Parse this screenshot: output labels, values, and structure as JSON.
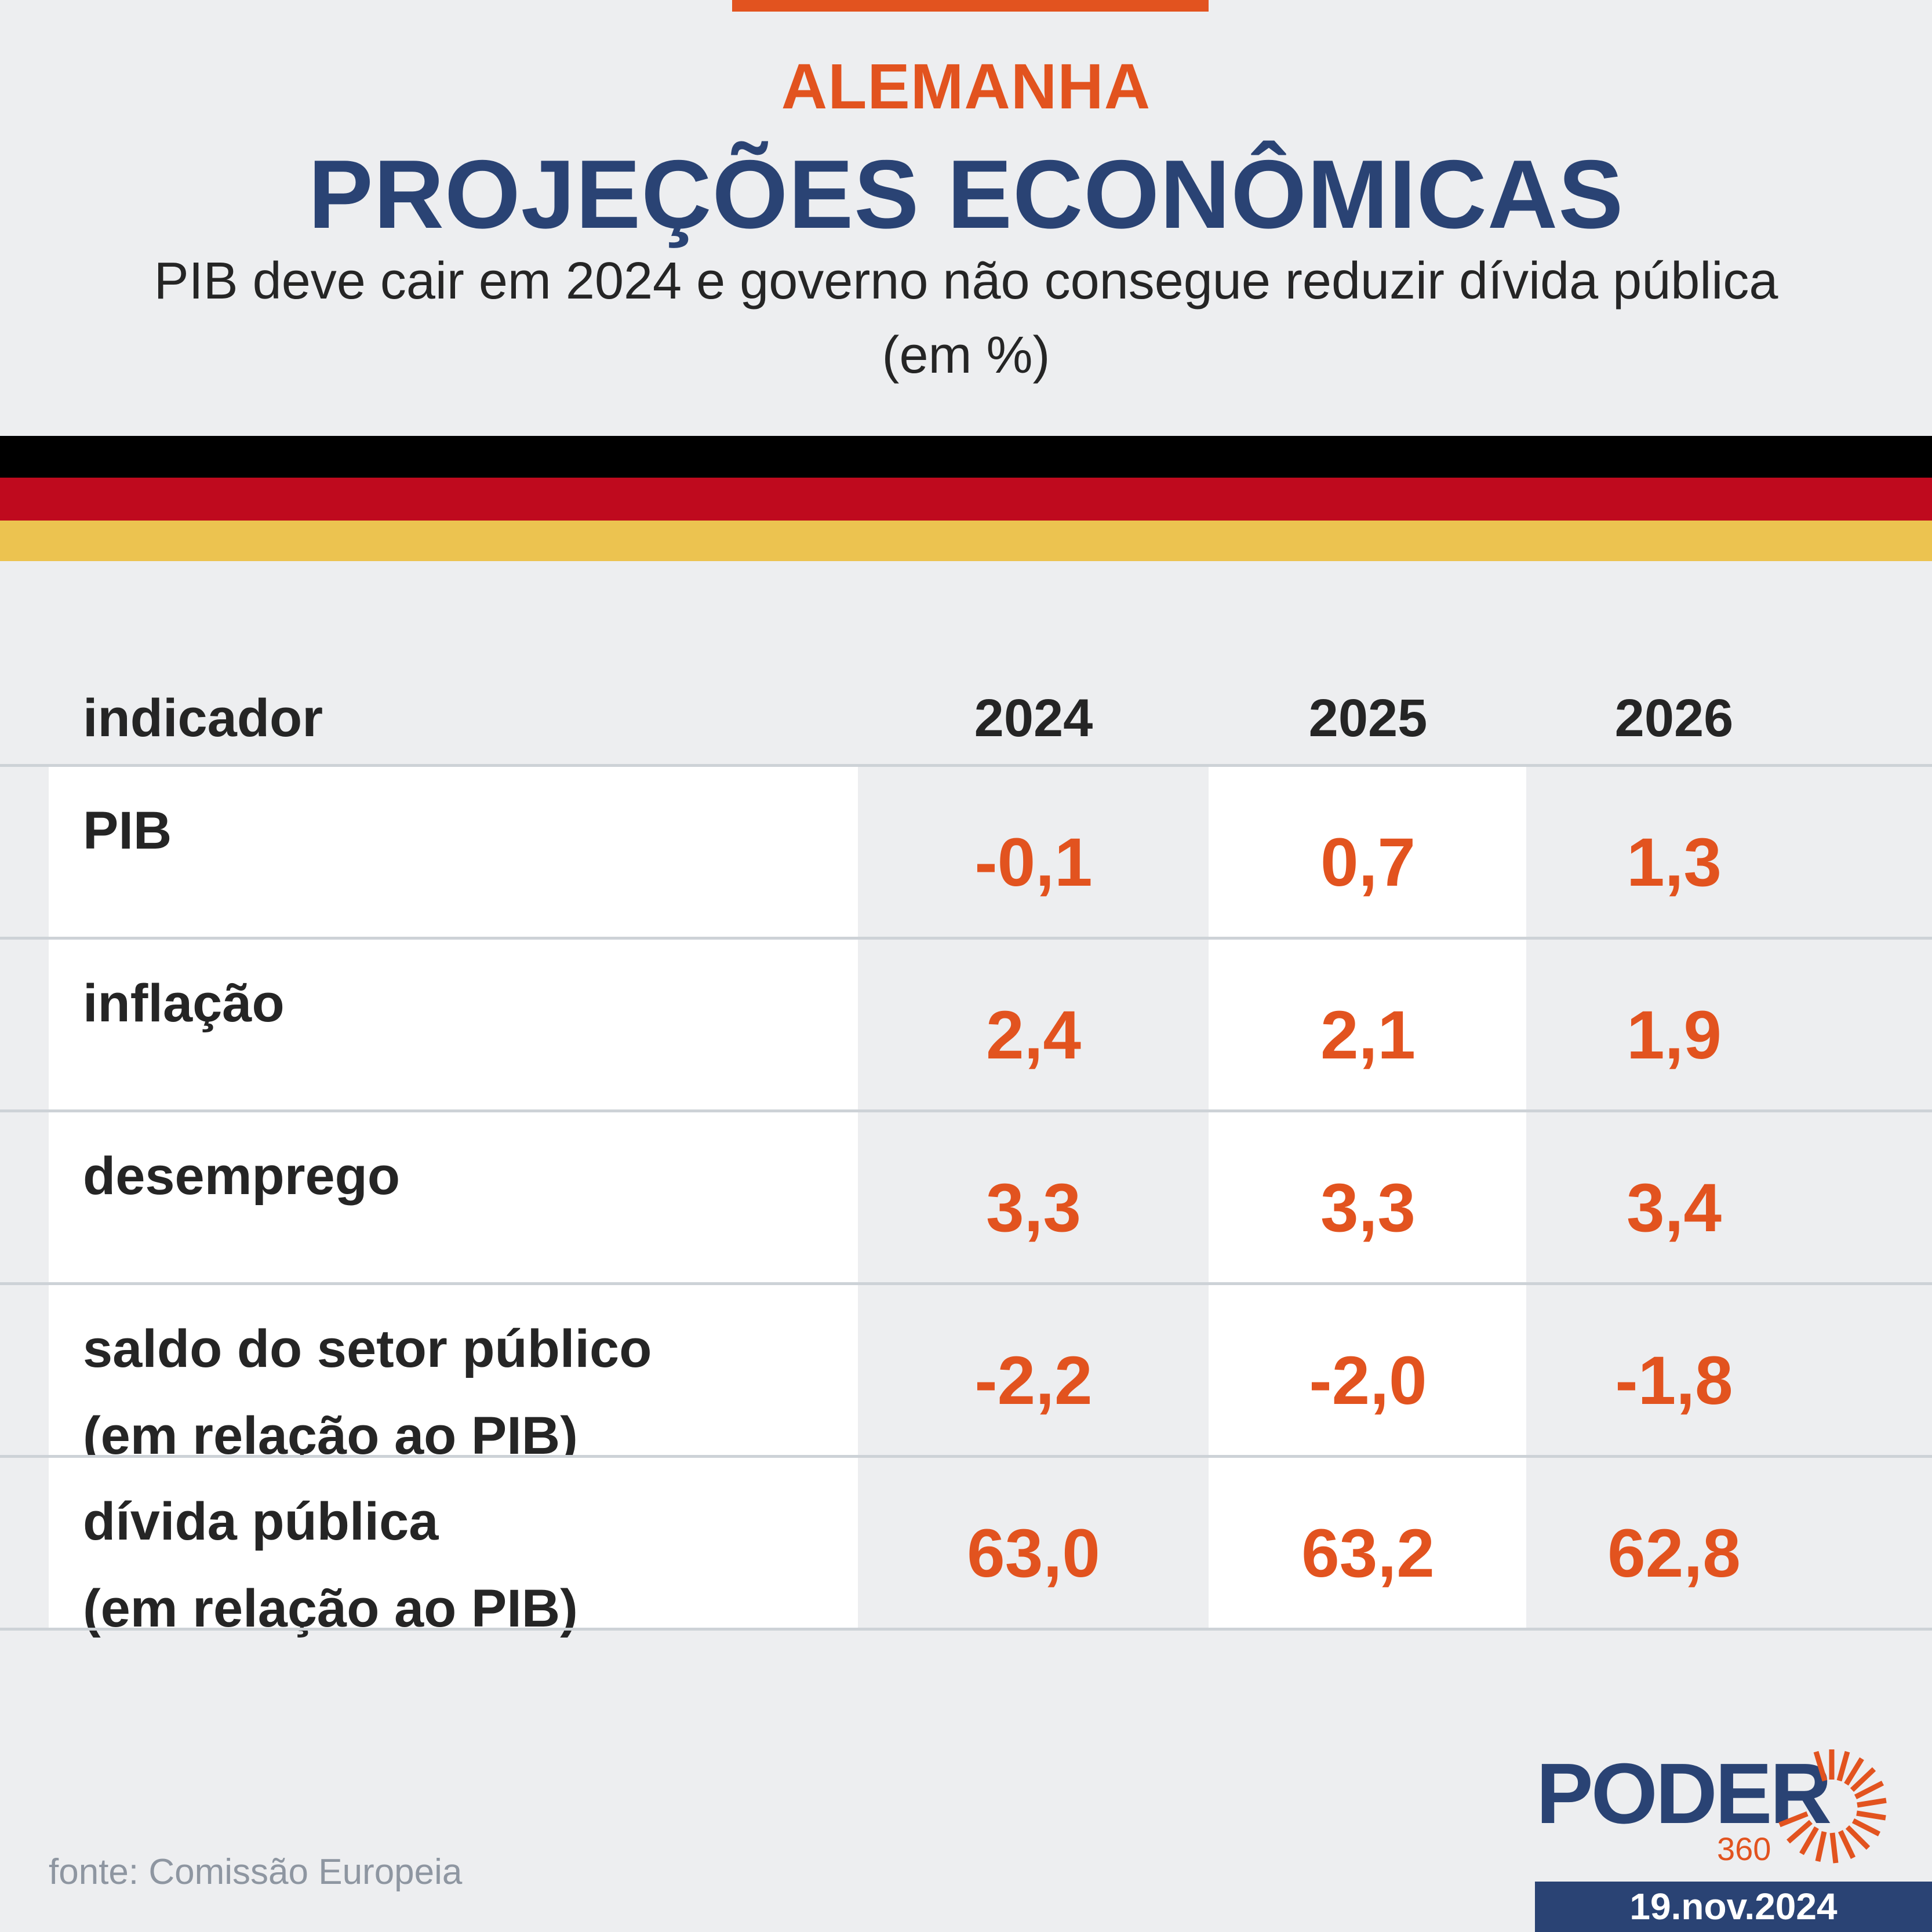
{
  "header": {
    "kicker": "ALEMANHA",
    "title": "PROJEÇÕES ECONÔMICAS",
    "subtitle": "PIB deve cair em 2024 e governo não consegue reduzir dívida pública",
    "unit": "(em %)"
  },
  "colors": {
    "accent": "#e2531f",
    "navy": "#2a4374",
    "flag_black": "#000000",
    "flag_red": "#bf0a1e",
    "flag_gold": "#ecc350"
  },
  "table": {
    "columns": [
      "indicador",
      "2024",
      "2025",
      "2026"
    ],
    "rows": [
      {
        "label": [
          "PIB"
        ],
        "values": [
          "-0,1",
          "0,7",
          "1,3"
        ]
      },
      {
        "label": [
          "inflação"
        ],
        "values": [
          "2,4",
          "2,1",
          "1,9"
        ]
      },
      {
        "label": [
          "desemprego"
        ],
        "values": [
          "3,3",
          "3,3",
          "3,4"
        ]
      },
      {
        "label": [
          "saldo do setor público",
          "(em relação ao PIB)"
        ],
        "values": [
          "-2,2",
          "-2,0",
          "-1,8"
        ]
      },
      {
        "label": [
          "dívida pública",
          "(em relação ao PIB)"
        ],
        "values": [
          "63,0",
          "63,2",
          "62,8"
        ]
      }
    ]
  },
  "footer": {
    "source": "fonte: Comissão Europeia",
    "logo_word": "PODER",
    "logo_number": "360",
    "logo_icon": "sunburst-icon",
    "date": "19.nov.2024"
  }
}
